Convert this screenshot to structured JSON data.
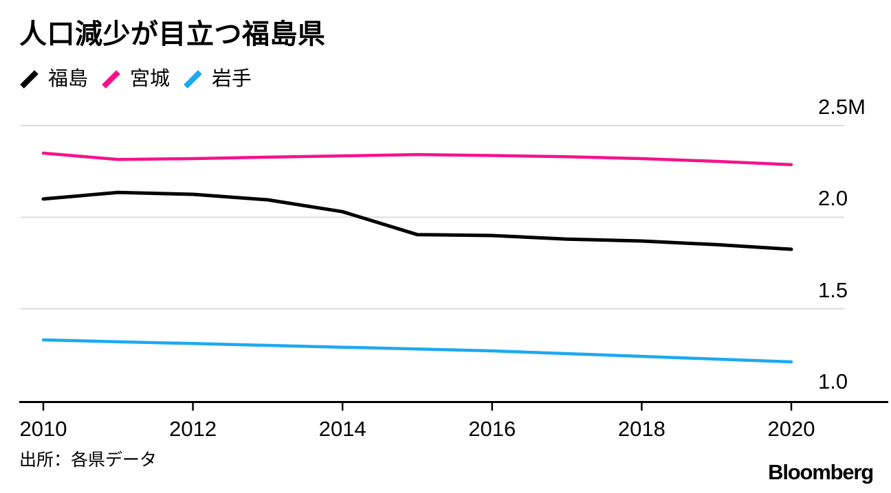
{
  "title": "人口減少が目立つ福島県",
  "source": "出所：各県データ",
  "logo_text": "Bloomberg",
  "colors": {
    "fukushima": "#000000",
    "miyagi": "#f4138c",
    "iwate": "#1ca9f0",
    "gridline": "#dcdcdc",
    "axis": "#000000",
    "text": "#000000",
    "background": "#ffffff"
  },
  "legend": [
    {
      "key": "fukushima",
      "label": "福島"
    },
    {
      "key": "miyagi",
      "label": "宮城"
    },
    {
      "key": "iwate",
      "label": "岩手"
    }
  ],
  "chart_data": {
    "type": "line",
    "title": "人口減少が目立つ福島県",
    "unit": "M",
    "x": [
      2010,
      2011,
      2012,
      2013,
      2014,
      2015,
      2016,
      2017,
      2018,
      2019,
      2020
    ],
    "series": [
      {
        "name": "福島",
        "key": "fukushima",
        "color": "#000000",
        "stroke_width": 5,
        "values": [
          2.1,
          2.135,
          2.125,
          2.095,
          2.03,
          1.905,
          1.9,
          1.88,
          1.87,
          1.85,
          1.825
        ]
      },
      {
        "name": "宮城",
        "key": "miyagi",
        "color": "#f4138c",
        "stroke_width": 4.5,
        "values": [
          2.35,
          2.315,
          2.32,
          2.328,
          2.335,
          2.342,
          2.337,
          2.33,
          2.32,
          2.305,
          2.287
        ]
      },
      {
        "name": "岩手",
        "key": "iwate",
        "color": "#1ca9f0",
        "stroke_width": 4.5,
        "values": [
          1.33,
          1.32,
          1.31,
          1.3,
          1.29,
          1.28,
          1.27,
          1.255,
          1.24,
          1.225,
          1.21
        ]
      }
    ],
    "xticks": {
      "values": [
        2010,
        2012,
        2014,
        2016,
        2018,
        2020
      ],
      "labels": [
        "2010",
        "2012",
        "2014",
        "2016",
        "2018",
        "2020"
      ]
    },
    "yticks": {
      "values": [
        2.5,
        2.0,
        1.5,
        1.0
      ],
      "labels": [
        "2.5M",
        "2.0",
        "1.5",
        "1.0"
      ]
    },
    "xlim": [
      2010,
      2020
    ],
    "ylim": [
      1.0,
      2.5
    ],
    "grid": "horizontal",
    "legend_position": "top-left"
  }
}
